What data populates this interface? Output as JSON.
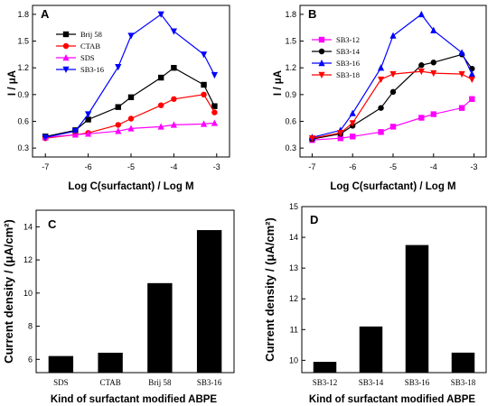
{
  "chart_data": [
    {
      "panel": "A",
      "type": "line",
      "xlabel": "Log C(surfactant) / Log M",
      "ylabel": "I / μA",
      "xlim": [
        -7.3,
        -2.7
      ],
      "ylim": [
        0.2,
        1.9
      ],
      "xticks": [
        "-7",
        "-6",
        "-5",
        "-4",
        "-3"
      ],
      "yticks": [
        "0.3",
        "0.6",
        "0.9",
        "1.2",
        "1.5",
        "1.8"
      ],
      "legend_position": "top-right",
      "series": [
        {
          "name": "Brij 58",
          "color": "#000000",
          "marker": "square",
          "x": [
            -7,
            -6.3,
            -6,
            -5.3,
            -5,
            -4.3,
            -4,
            -3.3,
            -3.05
          ],
          "y": [
            0.43,
            0.5,
            0.62,
            0.76,
            0.87,
            1.09,
            1.2,
            1.01,
            0.77
          ]
        },
        {
          "name": "CTAB",
          "color": "#ff0000",
          "marker": "circle",
          "x": [
            -7,
            -6.3,
            -6,
            -5.3,
            -5,
            -4.3,
            -4,
            -3.3,
            -3.05
          ],
          "y": [
            0.41,
            0.45,
            0.47,
            0.56,
            0.63,
            0.78,
            0.85,
            0.9,
            0.7
          ]
        },
        {
          "name": "SDS",
          "color": "#ff00ff",
          "marker": "triangle-up",
          "x": [
            -7,
            -6.3,
            -6,
            -5.3,
            -5,
            -4.3,
            -4,
            -3.3,
            -3.05
          ],
          "y": [
            0.42,
            0.45,
            0.46,
            0.49,
            0.52,
            0.54,
            0.56,
            0.57,
            0.58
          ]
        },
        {
          "name": "SB3-16",
          "color": "#0000ff",
          "marker": "triangle-down",
          "x": [
            -7,
            -6.3,
            -6,
            -5.3,
            -5,
            -4.3,
            -4,
            -3.3,
            -3.05
          ],
          "y": [
            0.42,
            0.49,
            0.68,
            1.21,
            1.56,
            1.8,
            1.61,
            1.35,
            1.12
          ]
        }
      ]
    },
    {
      "panel": "B",
      "type": "line",
      "xlabel": "Log C(surfactant) / Log M",
      "ylabel": "I / μA",
      "xlim": [
        -7.3,
        -2.7
      ],
      "ylim": [
        0.2,
        1.9
      ],
      "xticks": [
        "-7",
        "-6",
        "-5",
        "-4",
        "-3"
      ],
      "yticks": [
        "0.3",
        "0.6",
        "0.9",
        "1.2",
        "1.5",
        "1.8"
      ],
      "legend_position": "top-left",
      "series": [
        {
          "name": "SB3-12",
          "color": "#ff00ff",
          "marker": "square",
          "x": [
            -7,
            -6.3,
            -6,
            -5.3,
            -5,
            -4.3,
            -4,
            -3.3,
            -3.05
          ],
          "y": [
            0.39,
            0.41,
            0.43,
            0.48,
            0.54,
            0.64,
            0.68,
            0.75,
            0.85
          ]
        },
        {
          "name": "SB3-14",
          "color": "#000000",
          "marker": "circle",
          "x": [
            -7,
            -6.3,
            -6,
            -5.3,
            -5,
            -4.3,
            -4,
            -3.3,
            -3.05
          ],
          "y": [
            0.4,
            0.46,
            0.55,
            0.75,
            0.93,
            1.23,
            1.26,
            1.35,
            1.19
          ]
        },
        {
          "name": "SB3-16",
          "color": "#0000ff",
          "marker": "triangle-up",
          "x": [
            -7,
            -6.3,
            -6,
            -5.3,
            -5,
            -4.3,
            -4,
            -3.3,
            -3.05
          ],
          "y": [
            0.42,
            0.5,
            0.69,
            1.2,
            1.56,
            1.8,
            1.62,
            1.37,
            1.13
          ]
        },
        {
          "name": "SB3-18",
          "color": "#ff0000",
          "marker": "triangle-down",
          "x": [
            -7,
            -6.3,
            -6,
            -5.3,
            -5,
            -4.3,
            -4,
            -3.3,
            -3.05
          ],
          "y": [
            0.41,
            0.47,
            0.58,
            1.07,
            1.13,
            1.16,
            1.14,
            1.13,
            1.07
          ]
        }
      ]
    },
    {
      "panel": "C",
      "type": "bar",
      "xlabel": "Kind of surfactant modified ABPE",
      "ylabel": "Current density / (μA/cm²)",
      "ylim": [
        5.2,
        15
      ],
      "yticks": [
        "6",
        "8",
        "10",
        "12",
        "14"
      ],
      "categories": [
        "SDS",
        "CTAB",
        "Brij 58",
        "SB3-16"
      ],
      "values": [
        6.2,
        6.4,
        10.6,
        13.8
      ]
    },
    {
      "panel": "D",
      "type": "bar",
      "xlabel": "Kind of surfactant modified ABPE",
      "ylabel": "Current density / (μA/cm²)",
      "ylim": [
        9.6,
        15
      ],
      "yticks": [
        "10",
        "11",
        "12",
        "13",
        "14",
        "15"
      ],
      "categories": [
        "SB3-12",
        "SB3-14",
        "SB3-16",
        "SB3-18"
      ],
      "values": [
        9.95,
        11.1,
        13.75,
        10.25
      ]
    }
  ]
}
